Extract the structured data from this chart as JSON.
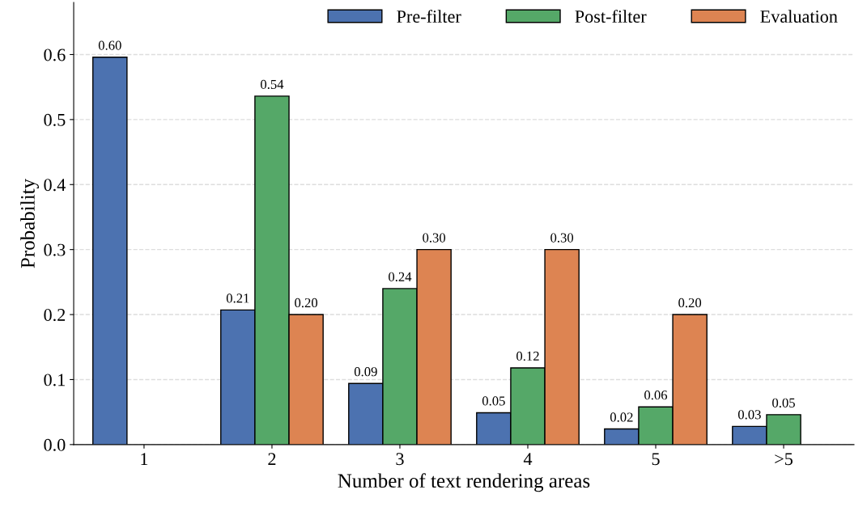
{
  "chart_data": {
    "type": "bar",
    "xlabel": "Number of text rendering areas",
    "ylabel": "Probability",
    "categories": [
      "1",
      "2",
      "3",
      "4",
      "5",
      ">5"
    ],
    "series": [
      {
        "name": "Pre-filter",
        "color": "#4c72b0",
        "values": [
          0.596,
          0.207,
          0.094,
          0.049,
          0.024,
          0.028
        ],
        "value_labels": [
          "0.60",
          "0.21",
          "0.09",
          "0.05",
          "0.02",
          "0.03"
        ]
      },
      {
        "name": "Post-filter",
        "color": "#55a868",
        "values": [
          null,
          0.536,
          0.24,
          0.118,
          0.058,
          0.046
        ],
        "value_labels": [
          null,
          "0.54",
          "0.24",
          "0.12",
          "0.06",
          "0.05"
        ]
      },
      {
        "name": "Evaluation",
        "color": "#dd8452",
        "values": [
          null,
          0.2,
          0.3,
          0.3,
          0.2,
          null
        ],
        "value_labels": [
          null,
          "0.20",
          "0.30",
          "0.30",
          "0.20",
          null
        ]
      }
    ],
    "ylim": [
      0,
      0.68
    ],
    "yticks": [
      {
        "value": 0,
        "label": "0.0"
      },
      0.1,
      0.2,
      0.3,
      0.4,
      0.5,
      0.6
    ],
    "grid": "y",
    "legend": "top right"
  }
}
